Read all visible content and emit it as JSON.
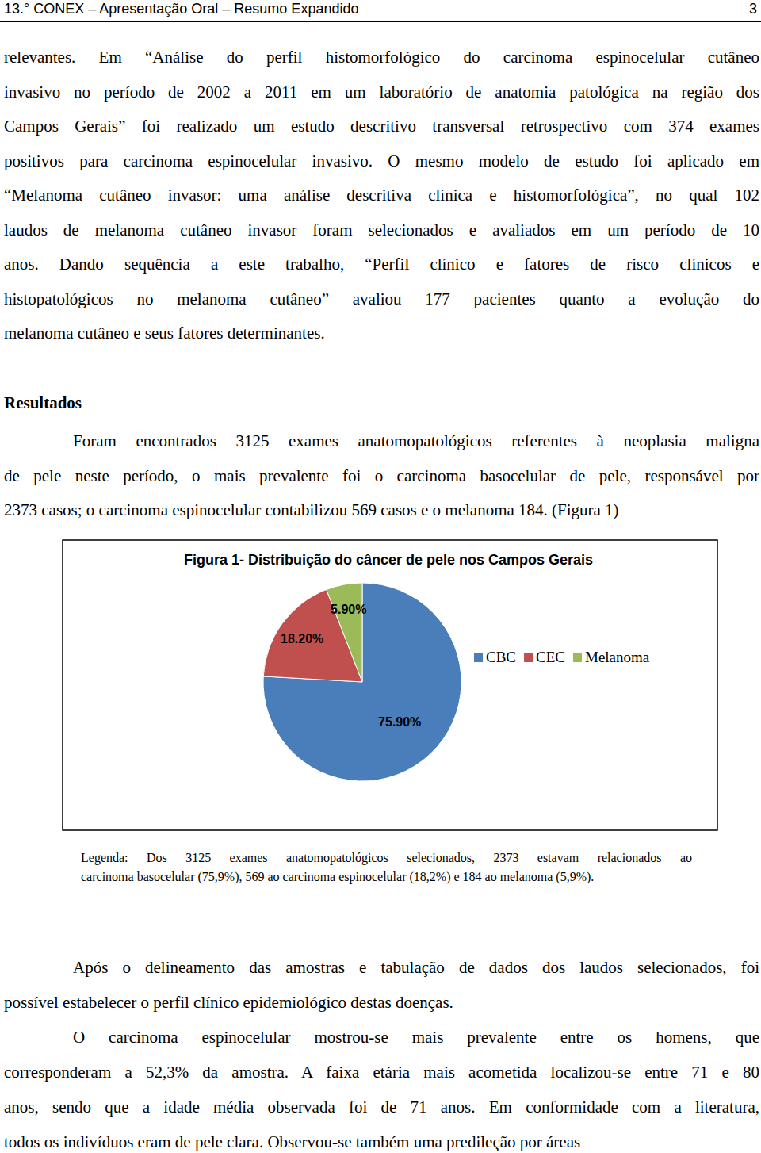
{
  "header": {
    "title": "13.° CONEX – Apresentação Oral – Resumo Expandido",
    "page": "3"
  },
  "intro_paragraph": {
    "lines": [
      "relevantes. Em “Análise do perfil histomorfológico do carcinoma espinocelular cutâneo",
      "invasivo no período de 2002 a 2011 em um laboratório de anatomia patológica na região dos",
      "Campos Gerais” foi realizado um estudo descritivo transversal retrospectivo com 374 exames",
      "positivos para carcinoma espinocelular invasivo. O mesmo modelo de estudo foi aplicado em",
      "“Melanoma cutâneo invasor: uma análise descritiva clínica e histomorfológica”, no qual 102",
      "laudos de melanoma cutâneo invasor foram selecionados e avaliados em um período de 10",
      "anos. Dando sequência a este trabalho, “Perfil clínico e fatores de risco clínicos e",
      "histopatológicos no melanoma cutâneo” avaliou 177 pacientes quanto a evolução do",
      "melanoma cutâneo e seus fatores determinantes."
    ]
  },
  "section_heading": "Resultados",
  "results_paragraph": {
    "lines": [
      "Foram encontrados 3125 exames anatomopatológicos referentes à neoplasia maligna",
      "de pele neste período, o mais prevalente foi o carcinoma basocelular de pele, responsável por",
      "2373 casos; o carcinoma espinocelular contabilizou 569 casos e o melanoma 184. (Figura 1)"
    ]
  },
  "chart_data": {
    "type": "pie",
    "title": "Figura 1- Distribuição do câncer de pele nos Campos Gerais",
    "categories": [
      "CBC",
      "CEC",
      "Melanoma"
    ],
    "values": [
      75.9,
      18.2,
      5.9
    ],
    "value_labels": [
      "75.90%",
      "18.20%",
      "5.90%"
    ],
    "colors": [
      "#4a7ebb",
      "#c0504d",
      "#9bbb59"
    ],
    "data_labels": true,
    "legend": "right"
  },
  "figure_caption": {
    "lines": [
      "Legenda: Dos 3125 exames anatomopatológicos selecionados, 2373 estavam relacionados ao",
      "carcinoma basocelular (75,9%), 569 ao carcinoma espinocelular (18,2%) e 184 ao melanoma (5,9%)."
    ]
  },
  "discussion_paragraphs": [
    {
      "lines": [
        "Após o delineamento das amostras e tabulação de dados dos laudos selecionados, foi",
        "possível estabelecer o perfil clínico epidemiológico destas doenças."
      ]
    },
    {
      "lines": [
        "O carcinoma espinocelular mostrou-se mais prevalente entre os homens, que",
        "corresponderam a 52,3% da amostra. A faixa etária mais acometida localizou-se entre 71 e 80",
        "anos, sendo que a idade média observada foi de 71 anos. Em conformidade com a literatura,",
        "todos os indivíduos eram de pele clara. Observou-se também uma predileção por áreas"
      ]
    }
  ]
}
